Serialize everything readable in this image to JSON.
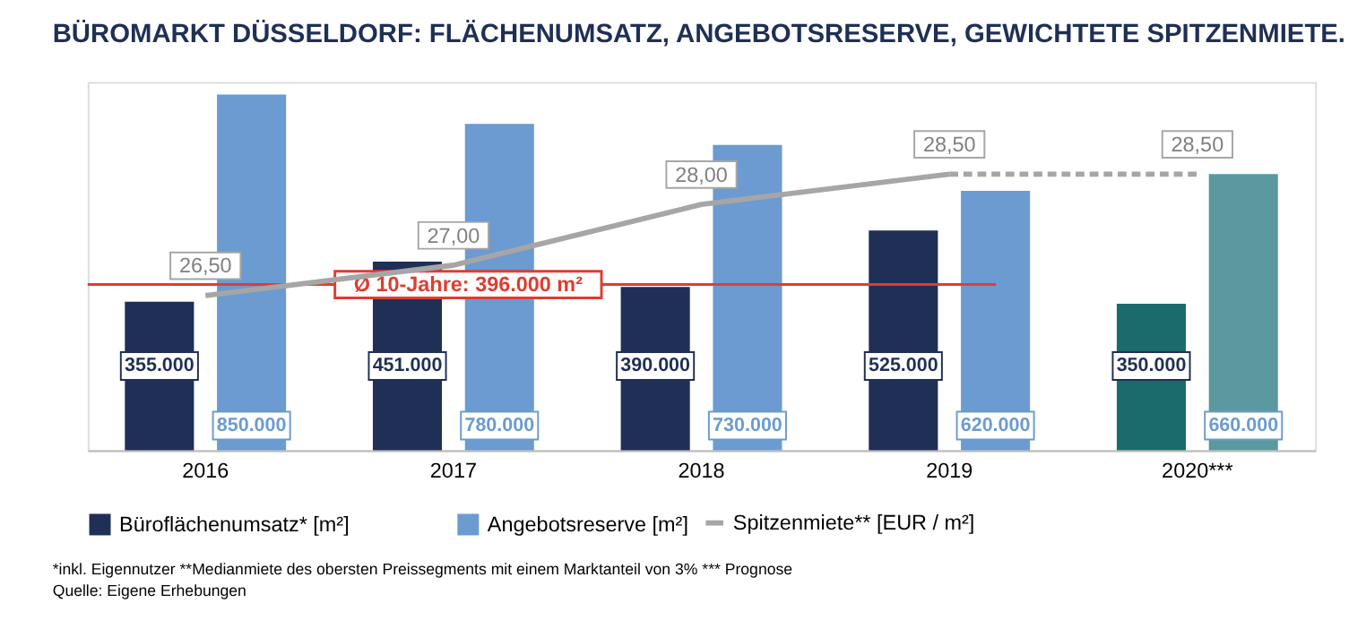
{
  "chart_data": {
    "type": "bar",
    "title": "BÜROMARKT DÜSSELDORF: FLÄCHENUMSATZ, ANGEBOTSRESERVE, GEWICHTETE SPITZENMIETE.",
    "categories": [
      "2016",
      "2017",
      "2018",
      "2019",
      "2020***"
    ],
    "series": [
      {
        "name": "Büroflächenumsatz* [m²]",
        "color": "#1f2f55",
        "colors": [
          "#1f2f55",
          "#1f2f55",
          "#1f2f55",
          "#1f2f55",
          "#1c6b6b"
        ],
        "values": [
          355000,
          451000,
          390000,
          525000,
          350000
        ],
        "value_labels": [
          "355.000",
          "451.000",
          "390.000",
          "525.000",
          "350.000"
        ]
      },
      {
        "name": "Angebotsreserve [m²]",
        "color": "#6b9bd0",
        "colors": [
          "#6b9bd0",
          "#6b9bd0",
          "#6b9bd0",
          "#6b9bd0",
          "#5a999e"
        ],
        "values": [
          850000,
          780000,
          730000,
          620000,
          660000
        ],
        "value_labels": [
          "850.000",
          "780.000",
          "730.000",
          "620.000",
          "660.000"
        ]
      },
      {
        "name": "Spitzenmiete** [EUR / m²]",
        "type": "line",
        "axis": "y2",
        "color": "#a6a6a6",
        "line_style": "solid",
        "values": [
          26.5,
          27.0,
          28.0,
          28.5,
          null
        ],
        "value_labels": [
          "26,50",
          "27,00",
          "28,00",
          "28,50",
          null
        ]
      },
      {
        "type": "line",
        "axis": "y2",
        "color": "#a6a6a6",
        "line_style": "dashed",
        "values": [
          null,
          null,
          null,
          28.5,
          28.5
        ],
        "value_labels": [
          null,
          null,
          null,
          null,
          "28,50"
        ]
      }
    ],
    "ylim": [
      0,
      880000
    ],
    "ref_lines": [
      {
        "axis": "y",
        "value": 396000,
        "label": "Ø 10-Jahre: 396.000 m²",
        "color": "#e03c31"
      }
    ],
    "annotations": [
      "*inkl. Eigennutzer **Medianmiete des obersten Preissegments mit einem Marktanteil von 3% *** Prognose",
      "Quelle: Eigene Erhebungen"
    ],
    "tick_labels": "x",
    "grid": false,
    "legend": "bottom"
  }
}
